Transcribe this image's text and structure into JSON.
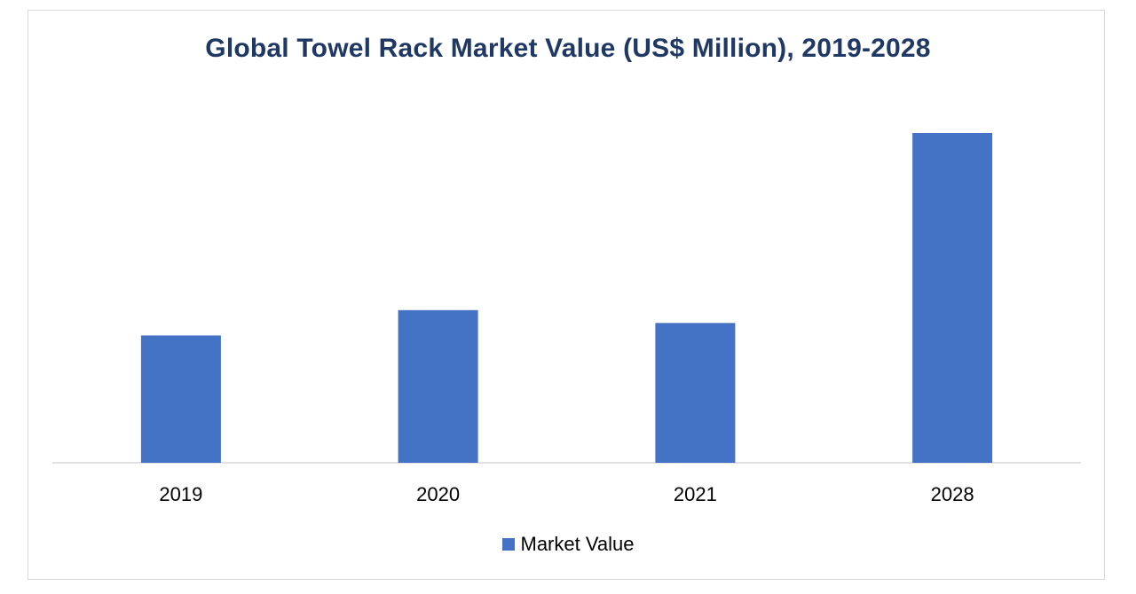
{
  "chart_data": {
    "type": "bar",
    "title": "Global Towel Rack Market Value (US$ Million), 2019-2028",
    "categories": [
      "2019",
      "2020",
      "2021",
      "2028"
    ],
    "series": [
      {
        "name": "Market Value",
        "values": [
          38.6,
          46.3,
          42.4,
          100
        ],
        "color": "#4472c4"
      }
    ],
    "xlabel": "",
    "ylabel": "",
    "ylim": [
      0,
      100
    ],
    "grid": false,
    "legend": "bottom"
  }
}
